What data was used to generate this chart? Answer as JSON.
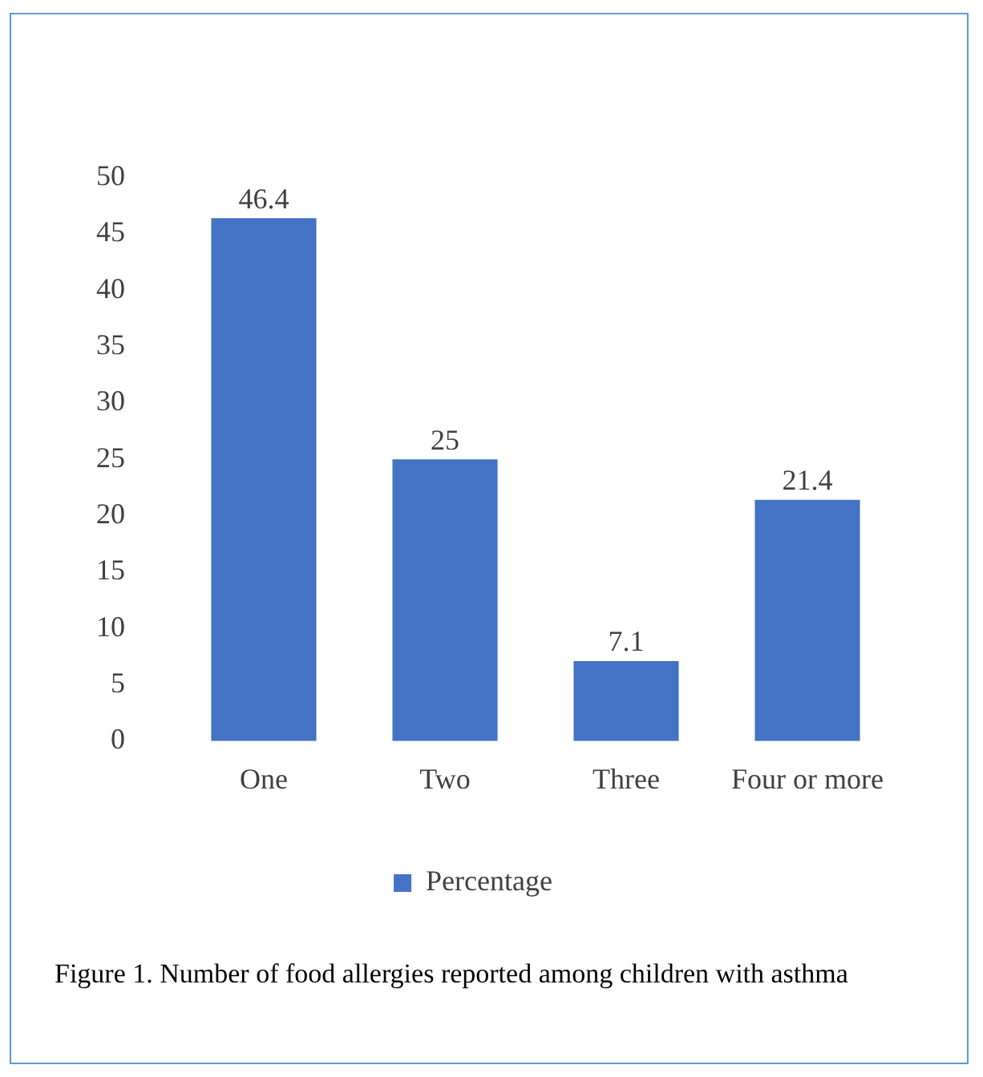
{
  "chart_data": {
    "type": "bar",
    "categories": [
      "One",
      "Two",
      "Three",
      "Four or more"
    ],
    "series": [
      {
        "name": "Percentage",
        "color": "#4472c4",
        "values": [
          46.4,
          25,
          7.1,
          21.4
        ]
      }
    ],
    "ylim": [
      0,
      50
    ],
    "yticks": [
      0,
      5,
      10,
      15,
      20,
      25,
      30,
      35,
      40,
      45,
      50
    ],
    "grid": false,
    "legend": "bottom",
    "data_labels": true,
    "annotations": [
      "Figure 1. Number of food allergies reported among children with asthma"
    ]
  }
}
